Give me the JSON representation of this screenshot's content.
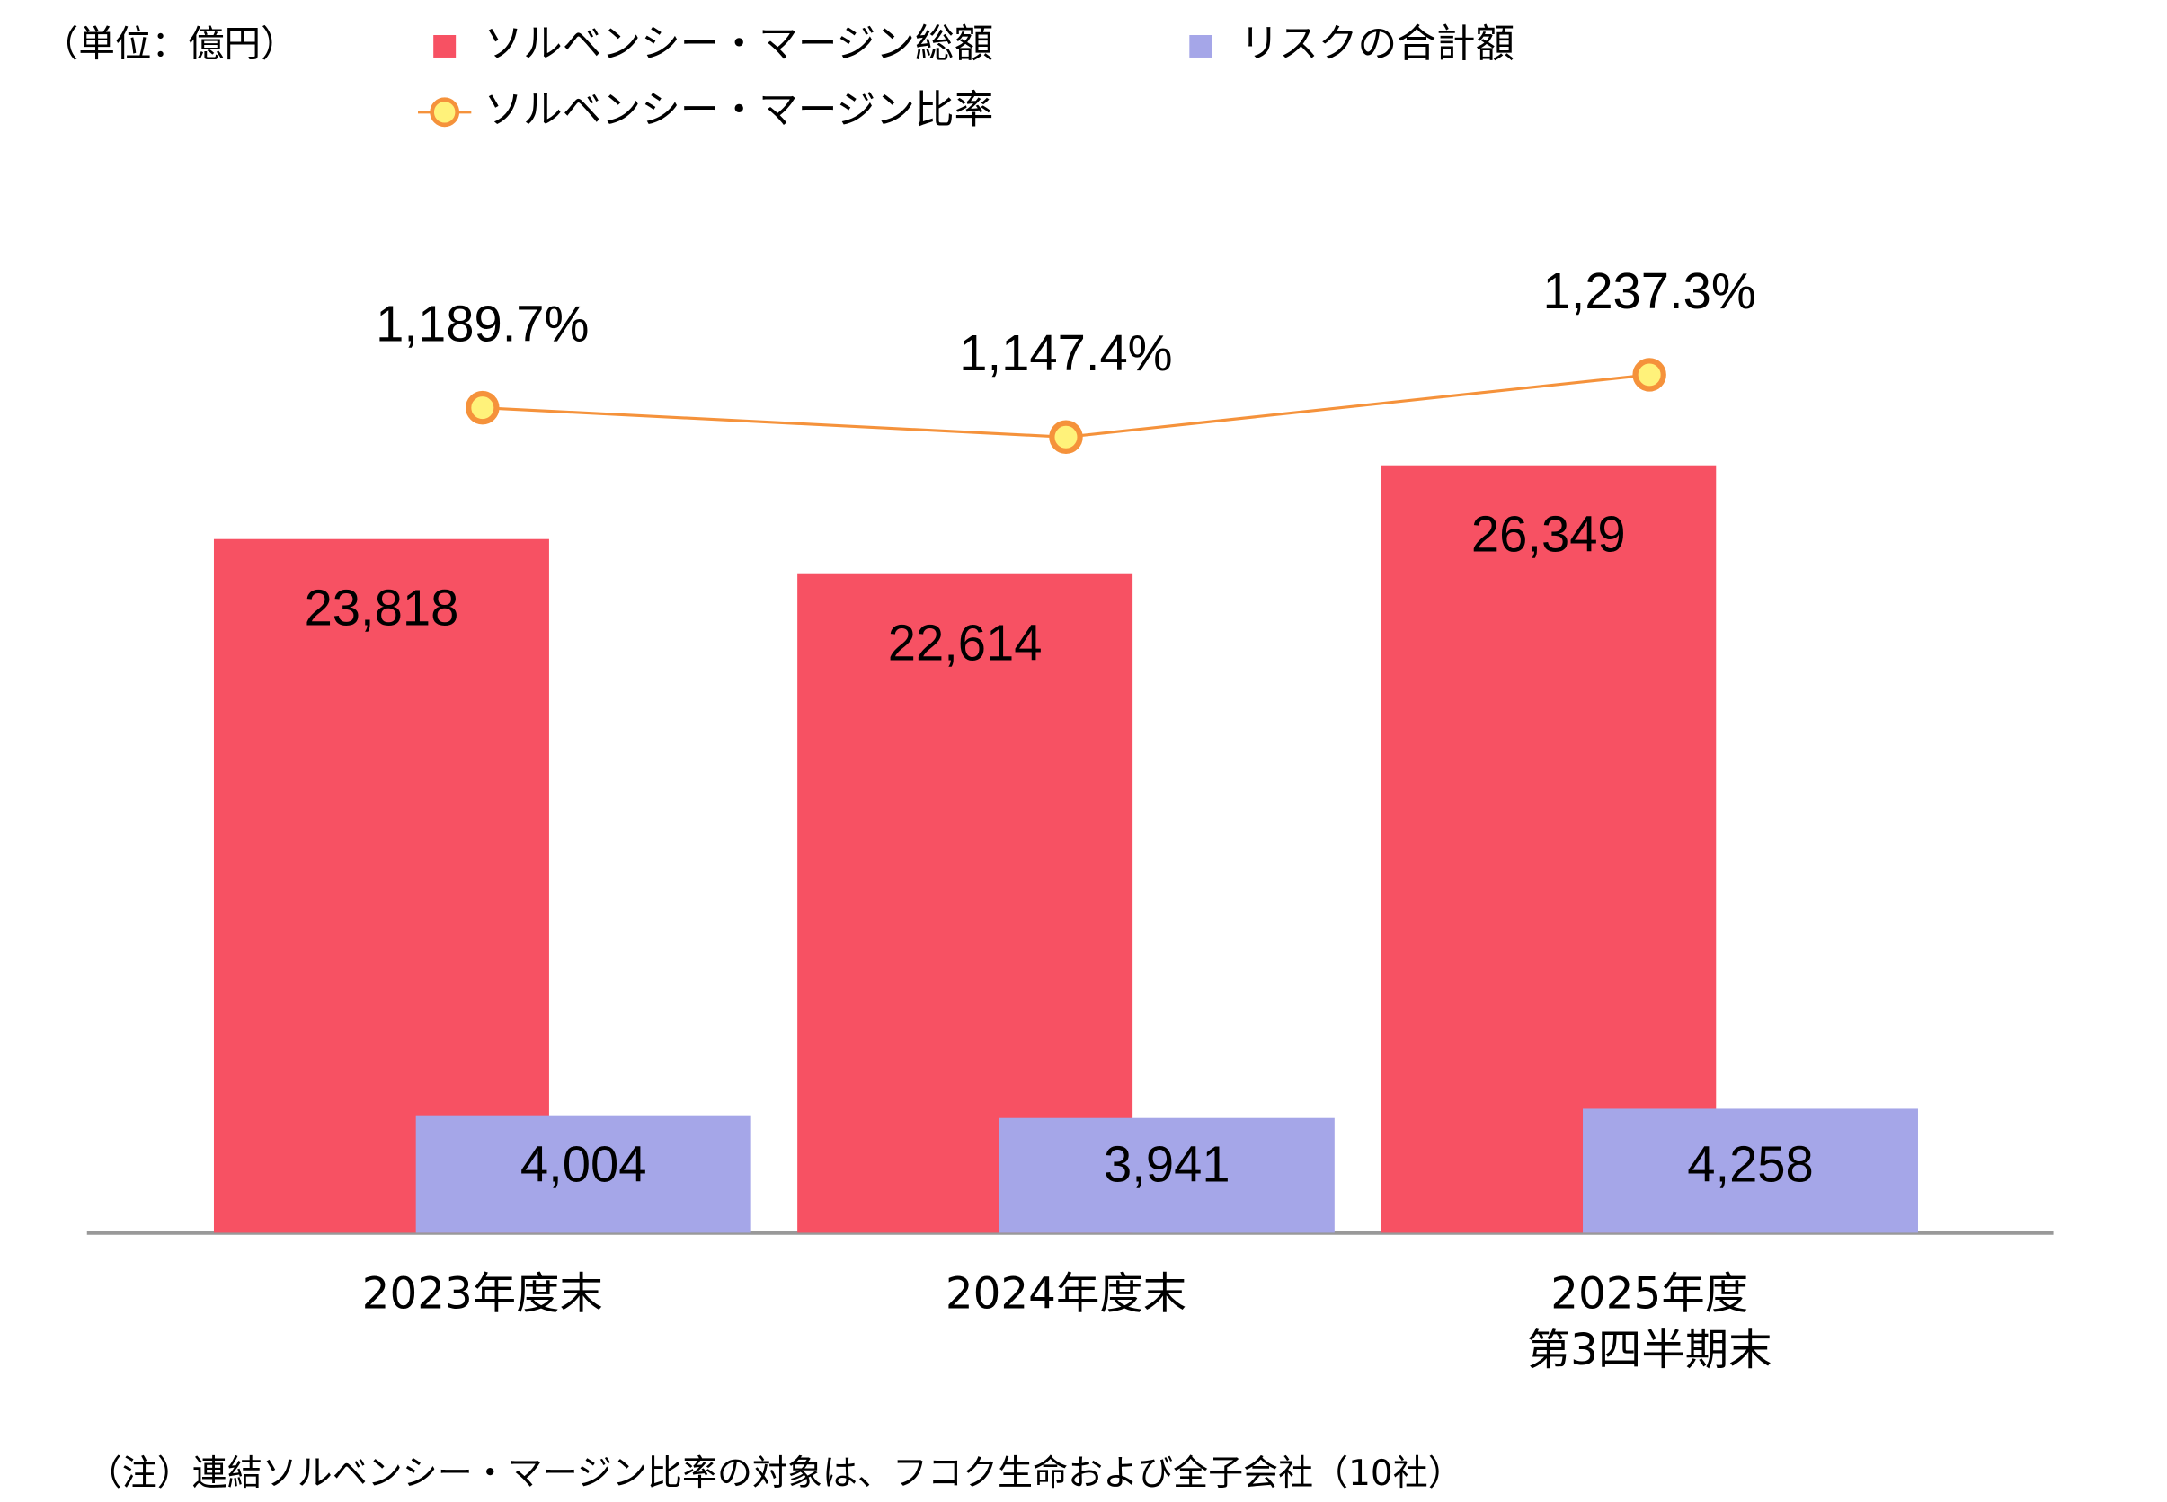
{
  "chart_data": {
    "type": "bar_line",
    "unit_label": "（単位：億円）",
    "note": "（注）連結ソルベンシー・マージン比率の対象は、フコク生命および全子会社（10社）",
    "categories": [
      "2023年度末",
      "2024年度末",
      "2025年度\n第3四半期末"
    ],
    "series": [
      {
        "name": "ソルベンシー・マージン総額",
        "type": "bar",
        "color": "#f75163",
        "values": [
          23818,
          22614,
          26349
        ],
        "value_labels": [
          "23,818",
          "22,614",
          "26,349"
        ]
      },
      {
        "name": "リスクの合計額",
        "type": "bar",
        "color": "#a5a6e8",
        "values": [
          4004,
          3941,
          4258
        ],
        "value_labels": [
          "4,004",
          "3,941",
          "4,258"
        ]
      },
      {
        "name": "ソルベンシー・マージン比率",
        "type": "line",
        "axis": "y2",
        "color": "#f5923b",
        "marker_fill": "#fff27a",
        "values": [
          1189.7,
          1147.4,
          1237.3
        ],
        "value_labels": [
          "1,189.7%",
          "1,147.4%",
          "1,237.3%"
        ]
      }
    ],
    "ylim": [
      0,
      30000
    ],
    "y2lim": [
      0,
      1260
    ],
    "legend": "top"
  }
}
